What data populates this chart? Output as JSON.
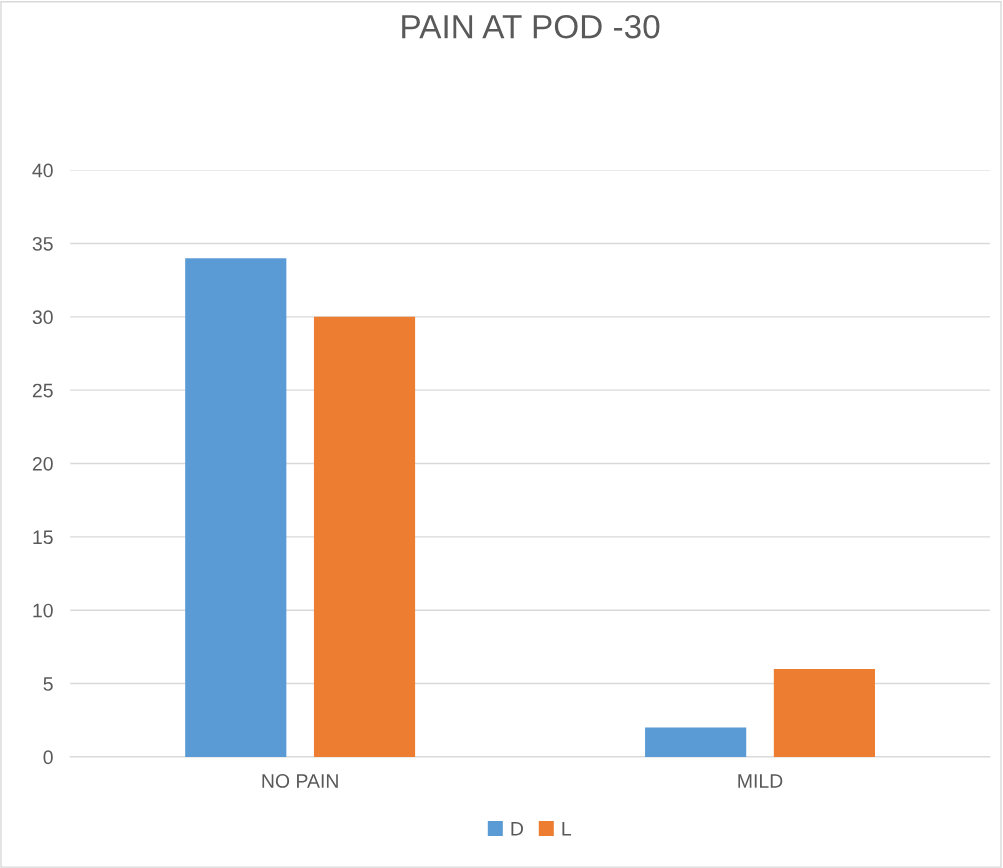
{
  "chart_data": {
    "type": "bar",
    "title": "PAIN AT POD -30",
    "categories": [
      "NO PAIN",
      "MILD"
    ],
    "series": [
      {
        "name": "D",
        "color": "#5b9bd5",
        "values": [
          34,
          2
        ]
      },
      {
        "name": "L",
        "color": "#ed7d31",
        "values": [
          30,
          6
        ]
      }
    ],
    "ylim": [
      0,
      40
    ],
    "yticks": [
      0,
      5,
      10,
      15,
      20,
      25,
      30,
      35,
      40
    ],
    "grid": "y",
    "legend": "bottom"
  }
}
